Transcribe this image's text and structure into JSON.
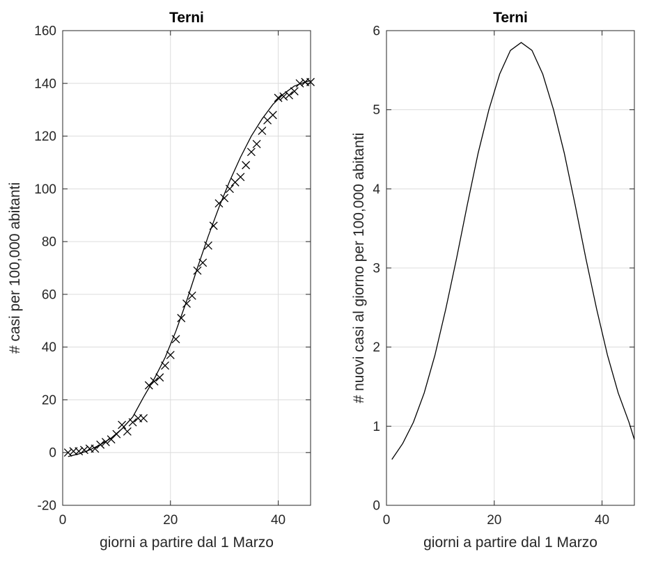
{
  "chart_data": [
    {
      "type": "line",
      "title": "Terni",
      "xlabel": "giorni a partire dal 1 Marzo",
      "ylabel": "# casi per 100,000 abitanti",
      "xlim": [
        0,
        46
      ],
      "ylim": [
        -20,
        160
      ],
      "xticks": [
        0,
        20,
        40
      ],
      "yticks": [
        -20,
        0,
        20,
        40,
        60,
        80,
        100,
        120,
        140,
        160
      ],
      "grid": true,
      "series": [
        {
          "style": "markers-x",
          "x": [
            1,
            2,
            3,
            4,
            5,
            6,
            7,
            8,
            9,
            10,
            11,
            12,
            13,
            14,
            15,
            16,
            17,
            18,
            19,
            20,
            21,
            22,
            23,
            24,
            25,
            26,
            27,
            28,
            29,
            30,
            31,
            32,
            33,
            34,
            35,
            36,
            37,
            38,
            39,
            40,
            41,
            42,
            43,
            44,
            45,
            46
          ],
          "y": [
            0,
            0.5,
            0.5,
            1,
            1.5,
            1.5,
            3,
            4,
            5,
            7,
            10.5,
            8,
            11.5,
            13,
            13,
            25.5,
            27,
            28.5,
            33,
            37,
            43,
            51,
            56.5,
            59.5,
            69,
            72,
            78.5,
            86,
            94.5,
            96.5,
            100,
            102.5,
            104.5,
            109,
            114,
            117,
            122,
            126,
            128,
            134.5,
            135,
            135.5,
            137,
            140,
            140.5,
            140.5
          ]
        },
        {
          "style": "line",
          "x": [
            1,
            3,
            5,
            7,
            9,
            11,
            13,
            15,
            17,
            19,
            21,
            23,
            25,
            27,
            29,
            31,
            33,
            35,
            37,
            39,
            41,
            43,
            45,
            46
          ],
          "y": [
            -1.5,
            -0.5,
            1,
            3,
            5.5,
            9,
            13.5,
            21,
            28,
            36,
            46,
            57.5,
            70,
            82,
            93,
            103,
            112,
            120,
            126.5,
            132,
            136,
            139,
            140.5,
            141
          ]
        }
      ]
    },
    {
      "type": "line",
      "title": "Terni",
      "xlabel": "giorni a partire dal 1 Marzo",
      "ylabel": "# nuovi casi al giorno per 100,000 abitanti",
      "xlim": [
        0,
        46
      ],
      "ylim": [
        0,
        6
      ],
      "xticks": [
        0,
        20,
        40
      ],
      "yticks": [
        0,
        1,
        2,
        3,
        4,
        5,
        6
      ],
      "grid": true,
      "series": [
        {
          "style": "line",
          "x": [
            1,
            3,
            5,
            7,
            9,
            11,
            13,
            15,
            17,
            19,
            21,
            23,
            25,
            27,
            29,
            31,
            33,
            35,
            37,
            39,
            41,
            43,
            45,
            46
          ],
          "y": [
            0.58,
            0.78,
            1.05,
            1.42,
            1.9,
            2.48,
            3.12,
            3.8,
            4.45,
            5.0,
            5.45,
            5.75,
            5.85,
            5.75,
            5.45,
            5.0,
            4.45,
            3.8,
            3.12,
            2.48,
            1.9,
            1.42,
            1.05,
            0.83
          ]
        }
      ]
    }
  ]
}
